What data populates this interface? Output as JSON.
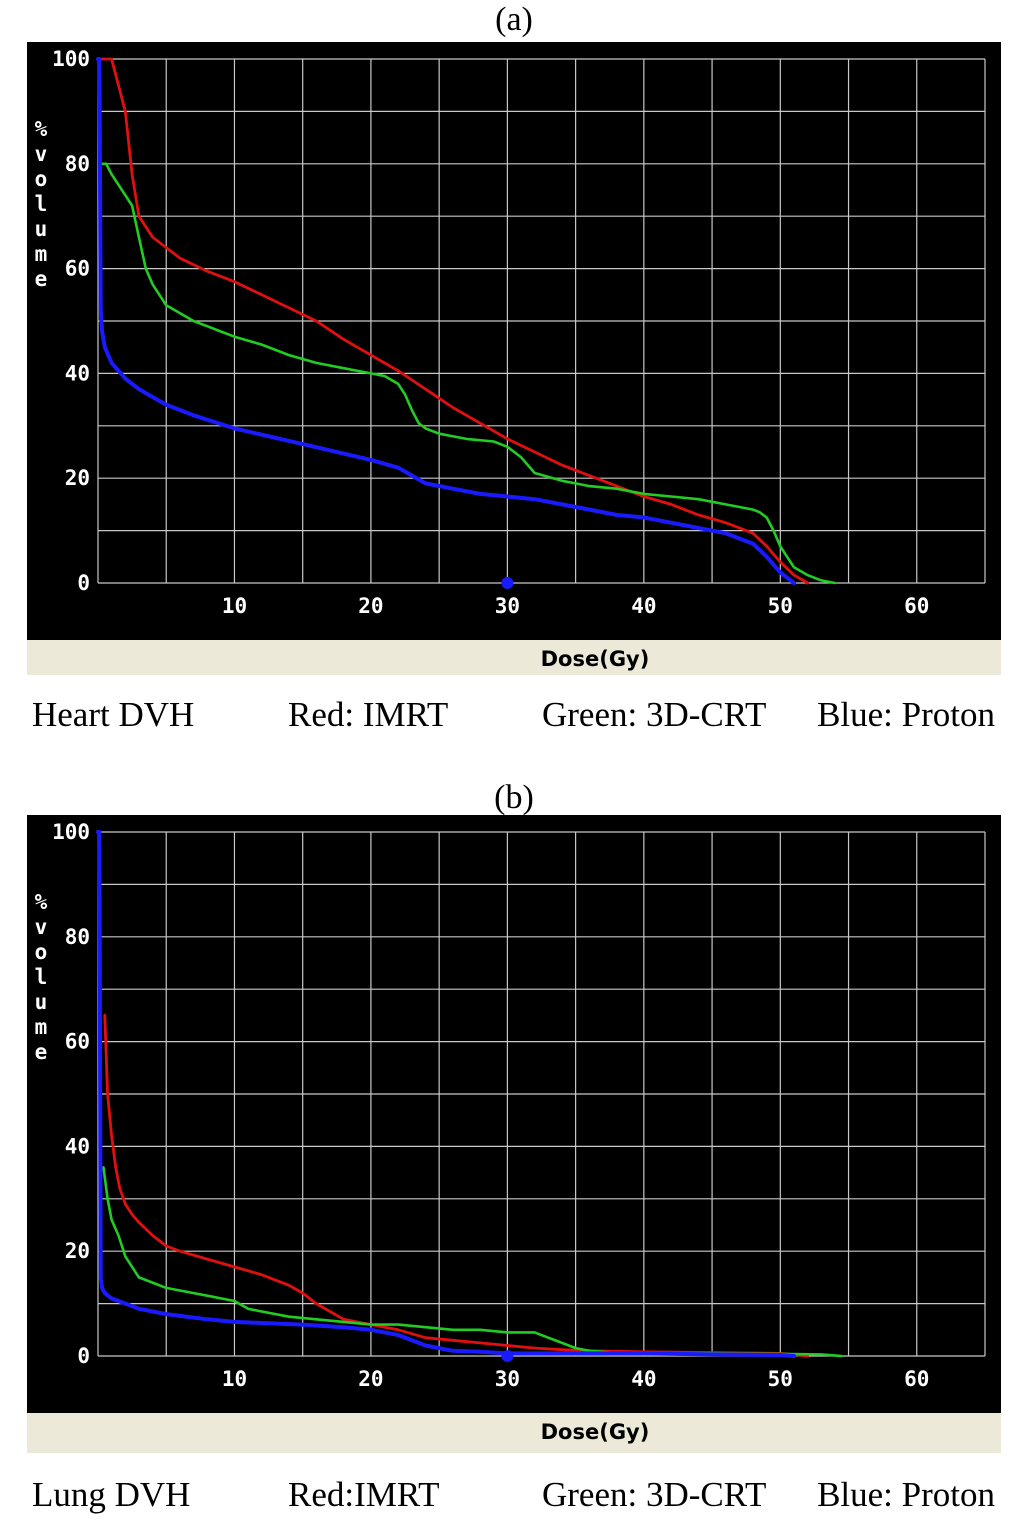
{
  "chart_data": [
    {
      "type": "line",
      "panel_label": "(a)",
      "xlabel": "Dose(Gy)",
      "ylabel": "%volume",
      "xlim": [
        0,
        65
      ],
      "ylim": [
        0,
        100
      ],
      "x_ticks": [
        10,
        20,
        30,
        40,
        50,
        60
      ],
      "y_ticks": [
        0,
        20,
        40,
        60,
        80,
        100
      ],
      "grid": true,
      "marker": {
        "x": 30,
        "y": 0,
        "color": "#1a1aff"
      },
      "series": [
        {
          "name": "IMRT",
          "color": "#e01010",
          "x": [
            0.3,
            1,
            2,
            2.5,
            3,
            4,
            6,
            8,
            10,
            12,
            14,
            16,
            18,
            20,
            22,
            24,
            26,
            28,
            30,
            32,
            34,
            36,
            38,
            40,
            42,
            44,
            46,
            48,
            49,
            50,
            51,
            52
          ],
          "y": [
            100,
            100,
            90,
            78,
            70,
            66,
            62,
            59.5,
            57.5,
            55,
            52.5,
            50,
            46.5,
            43.5,
            40.5,
            37,
            33.5,
            30.5,
            27.5,
            25,
            22.5,
            20.5,
            18.5,
            16.5,
            15,
            13,
            11.5,
            9.5,
            7,
            4,
            1.5,
            0
          ]
        },
        {
          "name": "3D-CRT",
          "color": "#22cc22",
          "x": [
            0.3,
            0.6,
            1,
            1.5,
            2,
            2.5,
            3,
            3.5,
            4,
            5,
            6,
            7,
            8,
            9,
            10,
            12,
            14,
            16,
            18,
            20,
            21,
            22,
            22.5,
            23,
            23.5,
            24,
            25,
            27,
            29,
            30,
            31,
            32,
            34,
            35,
            36,
            38,
            40,
            42,
            44,
            46,
            47,
            48,
            48.5,
            49,
            49.5,
            50,
            50.5,
            51,
            52,
            53,
            54
          ],
          "y": [
            80,
            80,
            78,
            76,
            74,
            72,
            66,
            60,
            57,
            53,
            51.5,
            50,
            49,
            48,
            47,
            45.5,
            43.5,
            42,
            41,
            40,
            39.5,
            38,
            36,
            33,
            30.5,
            29.5,
            28.5,
            27.5,
            27,
            26,
            24,
            21,
            19.5,
            19,
            18.5,
            18,
            17,
            16.5,
            16,
            15,
            14.5,
            14,
            13.5,
            12.5,
            10,
            7,
            5,
            3,
            1.5,
            0.5,
            0
          ]
        },
        {
          "name": "Proton",
          "color": "#1a1aff",
          "x": [
            0,
            0.1,
            0.2,
            0.3,
            0.5,
            1,
            2,
            3,
            5,
            7,
            10,
            15,
            20,
            22,
            24,
            26,
            28,
            30,
            32,
            34,
            36,
            38,
            40,
            42,
            44,
            46,
            48,
            49,
            50,
            51
          ],
          "y": [
            100,
            100,
            52,
            48,
            45,
            42,
            39,
            37,
            34,
            32,
            29.5,
            26.5,
            23.5,
            22,
            19,
            18,
            17,
            16.5,
            16,
            15,
            14,
            13,
            12.5,
            11.5,
            10.5,
            9.5,
            7.5,
            5,
            2,
            0
          ]
        }
      ],
      "caption": {
        "organ": "Heart DVH",
        "red": "Red: IMRT",
        "green": "Green: 3D-CRT",
        "blue": "Blue: Proton"
      }
    },
    {
      "type": "line",
      "panel_label": "(b)",
      "xlabel": "Dose(Gy)",
      "ylabel": "%volume",
      "xlim": [
        0,
        65
      ],
      "ylim": [
        0,
        100
      ],
      "x_ticks": [
        10,
        20,
        30,
        40,
        50,
        60
      ],
      "y_ticks": [
        0,
        20,
        40,
        60,
        80,
        100
      ],
      "grid": true,
      "marker": {
        "x": 30,
        "y": 0,
        "color": "#1a1aff"
      },
      "series": [
        {
          "name": "IMRT",
          "color": "#e01010",
          "x": [
            0.5,
            0.7,
            1,
            1.3,
            1.6,
            2,
            2.5,
            3,
            4,
            5,
            6,
            8,
            10,
            12,
            14,
            15,
            16,
            17,
            18,
            20,
            22,
            24,
            26,
            28,
            30,
            32,
            34,
            36,
            40,
            50,
            52
          ],
          "y": [
            65,
            50,
            42,
            36,
            32,
            29,
            27,
            25.5,
            23,
            21,
            20,
            18.5,
            17,
            15.5,
            13.5,
            12,
            10,
            8.5,
            7,
            6,
            5,
            3.5,
            3,
            2.5,
            2,
            1.5,
            1.2,
            1,
            0.8,
            0.5,
            0
          ]
        },
        {
          "name": "3D-CRT",
          "color": "#22cc22",
          "x": [
            0.4,
            0.7,
            1,
            1.5,
            2,
            3,
            4,
            5,
            6,
            8,
            10,
            11,
            12,
            14,
            16,
            18,
            20,
            22,
            24,
            26,
            28,
            30,
            32,
            33,
            34,
            35,
            36,
            37,
            38,
            40,
            45,
            50,
            53,
            54.5
          ],
          "y": [
            36,
            30,
            26,
            23,
            19,
            15,
            14,
            13,
            12.5,
            11.5,
            10.5,
            9,
            8.5,
            7.5,
            7,
            6.5,
            6,
            6,
            5.5,
            5,
            5,
            4.5,
            4.5,
            3.5,
            2.5,
            1.5,
            1,
            0.8,
            0.5,
            0.5,
            0.5,
            0.4,
            0.3,
            0
          ]
        },
        {
          "name": "Proton",
          "color": "#1a1aff",
          "x": [
            0,
            0.1,
            0.2,
            0.3,
            0.5,
            1,
            2,
            3,
            5,
            8,
            10,
            15,
            18,
            20,
            22,
            23,
            24,
            25,
            26,
            28,
            30,
            35,
            40,
            45,
            50,
            51
          ],
          "y": [
            100,
            100,
            15,
            13,
            12,
            11,
            10,
            9,
            8,
            7,
            6.5,
            6,
            5.5,
            5,
            4,
            3,
            2,
            1.5,
            1,
            0.8,
            0.5,
            0.5,
            0.5,
            0.3,
            0.2,
            0
          ]
        }
      ],
      "caption": {
        "organ": "Lung DVH",
        "red": "Red:IMRT",
        "green": "Green: 3D-CRT",
        "blue": "Blue: Proton"
      }
    }
  ]
}
